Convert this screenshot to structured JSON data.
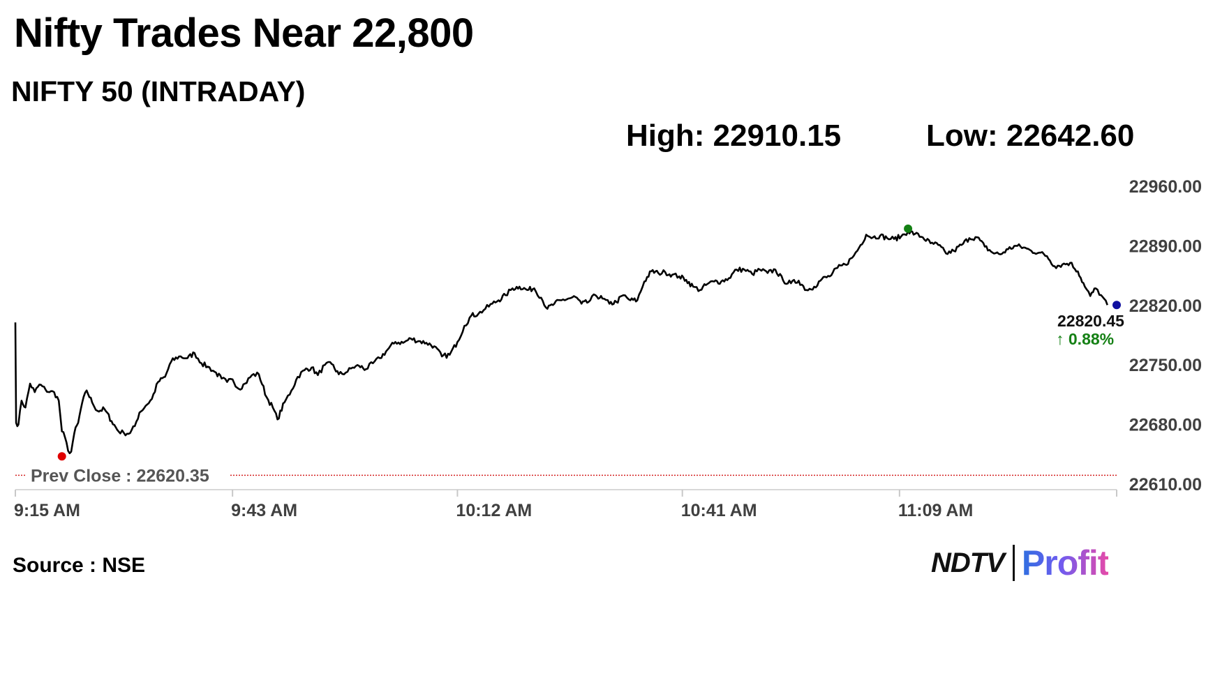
{
  "header": {
    "title": "Nifty Trades Near 22,800",
    "subtitle": "NIFTY 50 (INTRADAY)",
    "high_text": "High: 22910.15",
    "low_text": "Low: 22642.60"
  },
  "footer": {
    "source": "Source : NSE",
    "logo_ndtv": "NDTV",
    "logo_profit": "Profit"
  },
  "chart_data": {
    "type": "line",
    "ylim": [
      22610,
      22960
    ],
    "y_ticks": [
      "22960.00",
      "22890.00",
      "22820.00",
      "22750.00",
      "22680.00",
      "22610.00"
    ],
    "y_tick_values": [
      22960,
      22890,
      22820,
      22750,
      22680,
      22610
    ],
    "x_ticks": [
      "9:15 AM",
      "9:43 AM",
      "10:12 AM",
      "10:41 AM",
      "11:09 AM"
    ],
    "x_tick_minutes": [
      0,
      28,
      57,
      86,
      114
    ],
    "x_range_minutes": [
      0,
      142
    ],
    "prev_close": 22620.35,
    "prev_close_label": "Prev Close : 22620.35",
    "last_value_label": "22820.45",
    "change_label": "0.88%",
    "change_arrow": "↑",
    "colors": {
      "line": "#000000",
      "high_marker": "#148014",
      "low_marker": "#e00000",
      "last_marker": "#1010a0",
      "change_text": "#148014",
      "prev_close": "#d42020",
      "axis_text": "#404040"
    },
    "series": [
      {
        "values_points": [
          [
            0.0,
            22800
          ],
          [
            0.1,
            22682
          ],
          [
            0.4,
            22680
          ],
          [
            0.8,
            22708
          ],
          [
            1.3,
            22700
          ],
          [
            1.9,
            22728
          ],
          [
            2.5,
            22718
          ],
          [
            3.1,
            22727
          ],
          [
            3.9,
            22721
          ],
          [
            4.4,
            22718
          ],
          [
            5.0,
            22718
          ],
          [
            5.6,
            22708
          ],
          [
            6.0,
            22672
          ],
          [
            6.4,
            22665
          ],
          [
            6.8,
            22649
          ],
          [
            7.2,
            22648
          ],
          [
            7.6,
            22670
          ],
          [
            8.1,
            22682
          ],
          [
            8.6,
            22705
          ],
          [
            9.2,
            22720
          ],
          [
            9.9,
            22706
          ],
          [
            10.6,
            22696
          ],
          [
            11.5,
            22698
          ],
          [
            12.4,
            22684
          ],
          [
            13.3,
            22672
          ],
          [
            14.0,
            22670
          ],
          [
            14.8,
            22670
          ],
          [
            15.4,
            22678
          ],
          [
            16.0,
            22694
          ],
          [
            16.8,
            22702
          ],
          [
            17.6,
            22710
          ],
          [
            18.4,
            22730
          ],
          [
            19.3,
            22736
          ],
          [
            20.1,
            22754
          ],
          [
            21.1,
            22760
          ],
          [
            22.2,
            22758
          ],
          [
            23.1,
            22764
          ],
          [
            24.0,
            22752
          ],
          [
            24.8,
            22748
          ],
          [
            25.7,
            22742
          ],
          [
            26.6,
            22734
          ],
          [
            27.3,
            22730
          ],
          [
            28.0,
            22733
          ],
          [
            28.8,
            22722
          ],
          [
            29.6,
            22728
          ],
          [
            30.5,
            22738
          ],
          [
            31.4,
            22739
          ],
          [
            32.4,
            22712
          ],
          [
            33.2,
            22700
          ],
          [
            33.8,
            22686
          ],
          [
            34.7,
            22706
          ],
          [
            35.6,
            22720
          ],
          [
            36.4,
            22736
          ],
          [
            37.3,
            22744
          ],
          [
            38.2,
            22747
          ],
          [
            39.0,
            22738
          ],
          [
            39.9,
            22750
          ],
          [
            40.8,
            22751
          ],
          [
            41.7,
            22739
          ],
          [
            42.6,
            22741
          ],
          [
            43.5,
            22747
          ],
          [
            44.3,
            22749
          ],
          [
            45.2,
            22745
          ],
          [
            46.1,
            22752
          ],
          [
            47.0,
            22758
          ],
          [
            48.0,
            22768
          ],
          [
            49.0,
            22777
          ],
          [
            50.0,
            22776
          ],
          [
            51.0,
            22781
          ],
          [
            52.0,
            22778
          ],
          [
            53.0,
            22776
          ],
          [
            54.0,
            22772
          ],
          [
            55.0,
            22760
          ],
          [
            56.0,
            22762
          ],
          [
            57.0,
            22777
          ],
          [
            57.9,
            22796
          ],
          [
            58.8,
            22808
          ],
          [
            59.7,
            22810
          ],
          [
            60.6,
            22816
          ],
          [
            61.5,
            22822
          ],
          [
            62.3,
            22826
          ],
          [
            63.2,
            22832
          ],
          [
            64.1,
            22840
          ],
          [
            65.0,
            22842
          ],
          [
            66.0,
            22838
          ],
          [
            66.9,
            22840
          ],
          [
            67.8,
            22829
          ],
          [
            68.6,
            22816
          ],
          [
            69.5,
            22822
          ],
          [
            70.4,
            22826
          ],
          [
            71.3,
            22828
          ],
          [
            72.2,
            22830
          ],
          [
            73.0,
            22822
          ],
          [
            73.9,
            22824
          ],
          [
            74.8,
            22832
          ],
          [
            75.7,
            22828
          ],
          [
            76.6,
            22822
          ],
          [
            77.5,
            22824
          ],
          [
            78.4,
            22832
          ],
          [
            79.3,
            22826
          ],
          [
            80.2,
            22826
          ],
          [
            81.1,
            22848
          ],
          [
            82.0,
            22860
          ],
          [
            82.9,
            22858
          ],
          [
            83.8,
            22859
          ],
          [
            84.7,
            22856
          ],
          [
            85.6,
            22854
          ],
          [
            86.5,
            22850
          ],
          [
            87.4,
            22842
          ],
          [
            88.3,
            22838
          ],
          [
            89.2,
            22845
          ],
          [
            90.1,
            22848
          ],
          [
            91.0,
            22848
          ],
          [
            92.0,
            22852
          ],
          [
            93.0,
            22862
          ],
          [
            94.0,
            22862
          ],
          [
            95.0,
            22857
          ],
          [
            96.0,
            22862
          ],
          [
            97.0,
            22858
          ],
          [
            98.0,
            22862
          ],
          [
            99.0,
            22849
          ],
          [
            100.0,
            22846
          ],
          [
            101.0,
            22849
          ],
          [
            102.0,
            22838
          ],
          [
            103.0,
            22842
          ],
          [
            104.0,
            22851
          ],
          [
            105.0,
            22854
          ],
          [
            106.0,
            22864
          ],
          [
            107.0,
            22868
          ],
          [
            107.9,
            22876
          ],
          [
            108.8,
            22888
          ],
          [
            109.7,
            22903
          ],
          [
            110.6,
            22900
          ],
          [
            111.5,
            22902
          ],
          [
            112.4,
            22899
          ],
          [
            113.3,
            22898
          ],
          [
            114.2,
            22901
          ],
          [
            115.1,
            22907
          ],
          [
            116.0,
            22904
          ],
          [
            117.0,
            22900
          ],
          [
            118.0,
            22893
          ],
          [
            119.0,
            22891
          ],
          [
            120.0,
            22881
          ],
          [
            121.0,
            22884
          ],
          [
            122.0,
            22891
          ],
          [
            123.0,
            22899
          ],
          [
            124.0,
            22900
          ],
          [
            125.0,
            22889
          ],
          [
            126.0,
            22882
          ],
          [
            127.0,
            22880
          ],
          [
            128.0,
            22886
          ],
          [
            129.0,
            22890
          ],
          [
            130.0,
            22888
          ],
          [
            131.0,
            22884
          ],
          [
            132.0,
            22882
          ],
          [
            133.0,
            22878
          ],
          [
            134.0,
            22866
          ],
          [
            135.0,
            22868
          ],
          [
            136.0,
            22870
          ],
          [
            137.0,
            22860
          ],
          [
            137.9,
            22842
          ],
          [
            138.6,
            22831
          ],
          [
            139.3,
            22840
          ],
          [
            140.0,
            22832
          ],
          [
            140.8,
            22820.45
          ]
        ]
      }
    ],
    "high_point": [
      115.1,
      22910.15
    ],
    "low_point": [
      6.0,
      22642.6
    ],
    "last_point": [
      142.0,
      22820.45
    ]
  }
}
